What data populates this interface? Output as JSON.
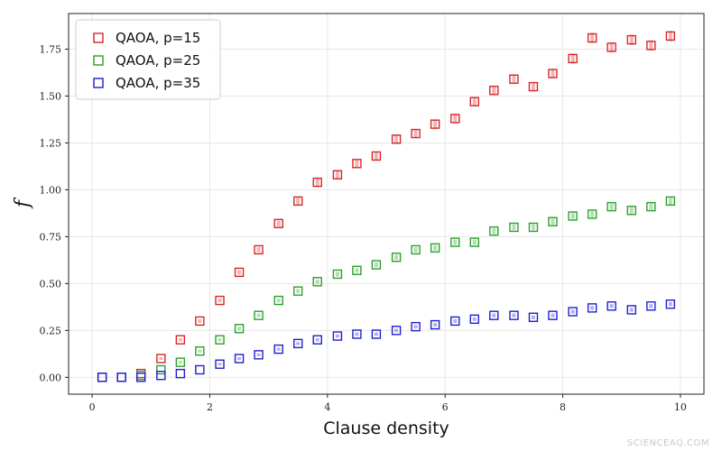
{
  "watermark": "SCIENCEAQ.COM",
  "chart_data": {
    "type": "scatter",
    "title": "",
    "xlabel": "Clause density",
    "ylabel": "f",
    "xlim": [
      -0.4,
      10.4
    ],
    "ylim": [
      -0.09,
      1.94
    ],
    "xticks": [
      0,
      2,
      4,
      6,
      8,
      10
    ],
    "yticks": [
      0.0,
      0.25,
      0.5,
      0.75,
      1.0,
      1.25,
      1.5,
      1.75
    ],
    "ytick_labels": [
      "0.00",
      "0.25",
      "0.50",
      "0.75",
      "1.00",
      "1.25",
      "1.50",
      "1.75"
    ],
    "grid": true,
    "legend_position": "top-left",
    "x": [
      0.17,
      0.5,
      0.83,
      1.17,
      1.5,
      1.83,
      2.17,
      2.5,
      2.83,
      3.17,
      3.5,
      3.83,
      4.17,
      4.5,
      4.83,
      5.17,
      5.5,
      5.83,
      6.17,
      6.5,
      6.83,
      7.17,
      7.5,
      7.83,
      8.17,
      8.5,
      8.83,
      9.17,
      9.5,
      9.83
    ],
    "series": [
      {
        "name": "QAOA, p=15",
        "color": "#d62728",
        "values": [
          0.0,
          0.0,
          0.02,
          0.1,
          0.2,
          0.3,
          0.41,
          0.56,
          0.68,
          0.82,
          0.94,
          1.04,
          1.08,
          1.14,
          1.18,
          1.27,
          1.3,
          1.35,
          1.38,
          1.47,
          1.53,
          1.59,
          1.55,
          1.62,
          1.7,
          1.81,
          1.76,
          1.8,
          1.77,
          1.82
        ]
      },
      {
        "name": "QAOA, p=25",
        "color": "#2ca02c",
        "values": [
          0.0,
          0.0,
          0.01,
          0.04,
          0.08,
          0.14,
          0.2,
          0.26,
          0.33,
          0.41,
          0.46,
          0.51,
          0.55,
          0.57,
          0.6,
          0.64,
          0.68,
          0.69,
          0.72,
          0.72,
          0.78,
          0.8,
          0.8,
          0.83,
          0.86,
          0.87,
          0.91,
          0.89,
          0.91,
          0.94
        ]
      },
      {
        "name": "QAOA, p=35",
        "color": "#1f1fd0",
        "values": [
          0.0,
          0.0,
          0.0,
          0.01,
          0.02,
          0.04,
          0.07,
          0.1,
          0.12,
          0.15,
          0.18,
          0.2,
          0.22,
          0.23,
          0.23,
          0.25,
          0.27,
          0.28,
          0.3,
          0.31,
          0.33,
          0.33,
          0.32,
          0.33,
          0.35,
          0.37,
          0.38,
          0.36,
          0.38,
          0.39
        ]
      }
    ]
  }
}
